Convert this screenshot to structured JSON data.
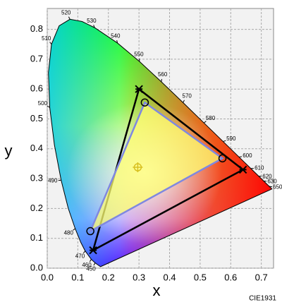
{
  "chart_data": {
    "type": "chromaticity",
    "xlabel": "x",
    "ylabel": "y",
    "footer": "CIE1931",
    "xlim": [
      0,
      0.74
    ],
    "ylim": [
      0,
      0.87
    ],
    "xticks": [
      {
        "value": 0,
        "label": "0.0"
      },
      0.1,
      0.2,
      0.3,
      0.4,
      0.5,
      0.6,
      0.7
    ],
    "yticks": [
      {
        "value": 0,
        "label": "0.0"
      },
      0.1,
      0.2,
      0.3,
      0.4,
      0.5,
      0.6,
      0.7,
      0.8
    ],
    "grid": true,
    "locus": {
      "x": [
        0.1741,
        0.1566,
        0.144,
        0.1241,
        0.1096,
        0.0913,
        0.0687,
        0.0454,
        0.0235,
        0.0082,
        0.0039,
        0.0139,
        0.0389,
        0.0743,
        0.1142,
        0.1547,
        0.2296,
        0.3016,
        0.3731,
        0.4441,
        0.5125,
        0.5752,
        0.627,
        0.6658,
        0.6915,
        0.7079,
        0.726,
        0.7347
      ],
      "y": [
        0.005,
        0.0177,
        0.0297,
        0.0578,
        0.0868,
        0.1327,
        0.2007,
        0.295,
        0.4127,
        0.5384,
        0.6548,
        0.7502,
        0.812,
        0.8338,
        0.8262,
        0.8059,
        0.7543,
        0.6923,
        0.6245,
        0.5547,
        0.4866,
        0.4242,
        0.3725,
        0.334,
        0.3083,
        0.292,
        0.274,
        0.2653
      ],
      "labels": [
        null,
        450,
        460,
        470,
        null,
        480,
        null,
        490,
        null,
        500,
        null,
        510,
        null,
        520,
        null,
        530,
        540,
        550,
        560,
        570,
        580,
        590,
        600,
        610,
        620,
        630,
        650,
        null
      ]
    },
    "gamuts": [
      {
        "color": "#000000",
        "marker": "star",
        "x": [
          0.64,
          0.3,
          0.15
        ],
        "y": [
          0.33,
          0.6,
          0.06
        ]
      },
      {
        "color": "#7f88e0",
        "marker": "circle",
        "fill": "#ffff70",
        "x": [
          0.573,
          0.319,
          0.141
        ],
        "y": [
          0.368,
          0.555,
          0.124
        ]
      }
    ],
    "white_point": {
      "color": "#d8c020",
      "x": 0.296,
      "y": 0.338
    }
  }
}
